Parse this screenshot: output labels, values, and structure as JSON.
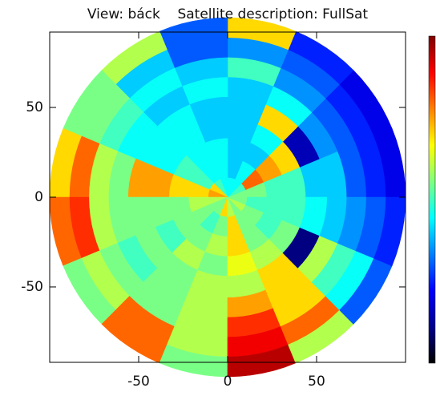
{
  "chart_data": {
    "type": "polar-heatmap",
    "title": "View: báck    Satellite description: FullSat",
    "xlim": [
      -100,
      100
    ],
    "ylim": [
      -92,
      92
    ],
    "xticks": [
      -50,
      0,
      50
    ],
    "yticks": [
      -50,
      0,
      50
    ],
    "r_edges": [
      0,
      11,
      22,
      33,
      44,
      56,
      67,
      78,
      89,
      100
    ],
    "theta_edges": [
      0,
      22.5,
      45,
      67.5,
      90,
      112.5,
      135,
      157.5,
      180,
      202.5,
      225,
      247.5,
      270,
      292.5,
      315,
      337.5,
      360
    ],
    "colormap": [
      "#000000",
      "#00008f",
      "#0000ff",
      "#0080ff",
      "#00ffff",
      "#80ff80",
      "#ffff00",
      "#ff8000",
      "#ff0000",
      "#800000"
    ],
    "values": [
      [
        0.55,
        0.5,
        0.45,
        0.45,
        0.45,
        0.5,
        0.7,
        0.75,
        0.6,
        0.55,
        0.55,
        0.7,
        0.6,
        0.55,
        0.6,
        0.55
      ],
      [
        0.55,
        0.8,
        0.45,
        0.4,
        0.45,
        0.45,
        0.5,
        0.7,
        0.6,
        0.55,
        0.5,
        0.55,
        0.7,
        0.55,
        0.55,
        0.5
      ],
      [
        0.5,
        0.75,
        0.4,
        0.4,
        0.45,
        0.45,
        0.5,
        0.7,
        0.55,
        0.55,
        0.55,
        0.6,
        0.7,
        0.55,
        0.5,
        0.5
      ],
      [
        0.5,
        0.7,
        0.45,
        0.4,
        0.4,
        0.45,
        0.45,
        0.75,
        0.55,
        0.5,
        0.6,
        0.55,
        0.65,
        0.6,
        0.55,
        0.5
      ],
      [
        0.4,
        0.15,
        0.7,
        0.4,
        0.4,
        0.45,
        0.45,
        0.75,
        0.55,
        0.55,
        0.55,
        0.6,
        0.6,
        0.7,
        0.1,
        0.45
      ],
      [
        0.4,
        0.35,
        0.45,
        0.4,
        0.45,
        0.4,
        0.45,
        0.55,
        0.55,
        0.5,
        0.55,
        0.6,
        0.75,
        0.7,
        0.6,
        0.4
      ],
      [
        0.3,
        0.3,
        0.35,
        0.5,
        0.4,
        0.45,
        0.5,
        0.6,
        0.6,
        0.55,
        0.55,
        0.6,
        0.85,
        0.7,
        0.5,
        0.35
      ],
      [
        0.25,
        0.25,
        0.3,
        0.35,
        0.3,
        0.4,
        0.55,
        0.8,
        0.85,
        0.6,
        0.8,
        0.6,
        0.9,
        0.8,
        0.45,
        0.3
      ],
      [
        0.2,
        0.2,
        0.25,
        0.7,
        0.3,
        0.6,
        0.55,
        0.7,
        0.8,
        0.55,
        0.8,
        0.55,
        0.95,
        0.6,
        0.3,
        0.25
      ]
    ]
  }
}
